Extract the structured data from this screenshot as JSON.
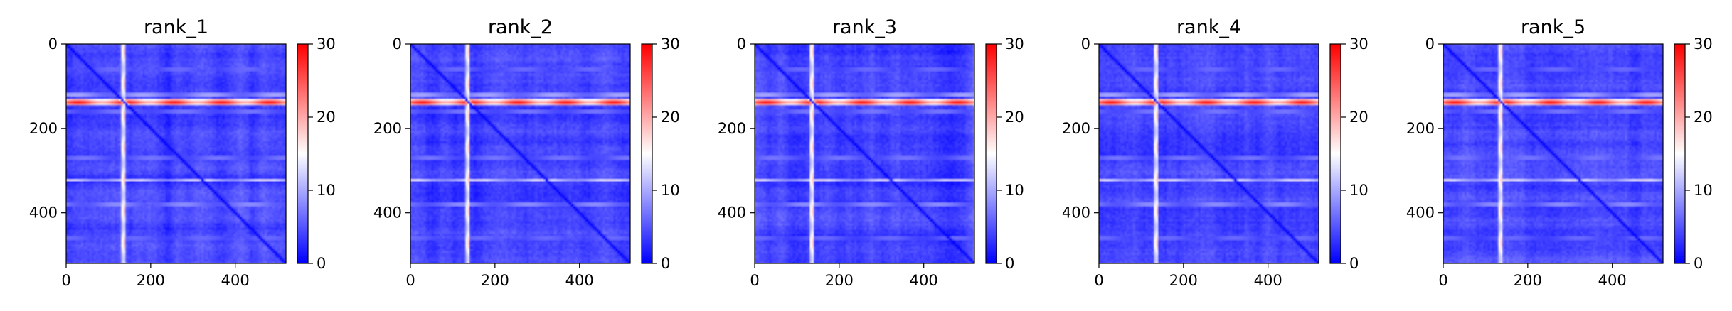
{
  "chart_data": [
    {
      "type": "heatmap",
      "title": "rank_1",
      "xlabel": "",
      "ylabel": "",
      "size": 520,
      "xlim": [
        0,
        520
      ],
      "ylim": [
        520,
        0
      ],
      "x_ticks": [
        0,
        200,
        400
      ],
      "y_ticks": [
        0,
        200,
        400
      ],
      "colorbar": {
        "vmin": 0,
        "vmax": 30,
        "ticks": [
          0,
          10,
          20,
          30
        ],
        "colormap": "bwr"
      },
      "features": {
        "background_value": 4,
        "diagonal_value": 0,
        "column_bands": [
          {
            "pos": 136,
            "value": 20
          }
        ],
        "row_bands": [
          {
            "pos": 138,
            "value": 30
          },
          {
            "pos": 120,
            "value": 14
          },
          {
            "pos": 322,
            "value": 17
          },
          {
            "pos": 380,
            "value": 12
          },
          {
            "pos": 160,
            "value": 10
          },
          {
            "pos": 270,
            "value": 10
          },
          {
            "pos": 60,
            "value": 9
          },
          {
            "pos": 460,
            "value": 9
          }
        ]
      }
    },
    {
      "type": "heatmap",
      "title": "rank_2",
      "xlabel": "",
      "ylabel": "",
      "size": 520,
      "xlim": [
        0,
        520
      ],
      "ylim": [
        520,
        0
      ],
      "x_ticks": [
        0,
        200,
        400
      ],
      "y_ticks": [
        0,
        200,
        400
      ],
      "colorbar": {
        "vmin": 0,
        "vmax": 30,
        "ticks": [
          0,
          10,
          20,
          30
        ],
        "colormap": "bwr"
      },
      "features": {
        "background_value": 4,
        "diagonal_value": 0,
        "column_bands": [
          {
            "pos": 136,
            "value": 20
          }
        ],
        "row_bands": [
          {
            "pos": 138,
            "value": 30
          },
          {
            "pos": 120,
            "value": 14
          },
          {
            "pos": 322,
            "value": 17
          },
          {
            "pos": 380,
            "value": 12
          },
          {
            "pos": 160,
            "value": 10
          },
          {
            "pos": 270,
            "value": 10
          },
          {
            "pos": 60,
            "value": 9
          },
          {
            "pos": 460,
            "value": 9
          }
        ]
      }
    },
    {
      "type": "heatmap",
      "title": "rank_3",
      "xlabel": "",
      "ylabel": "",
      "size": 520,
      "xlim": [
        0,
        520
      ],
      "ylim": [
        520,
        0
      ],
      "x_ticks": [
        0,
        200,
        400
      ],
      "y_ticks": [
        0,
        200,
        400
      ],
      "colorbar": {
        "vmin": 0,
        "vmax": 30,
        "ticks": [
          0,
          10,
          20,
          30
        ],
        "colormap": "bwr"
      },
      "features": {
        "background_value": 4,
        "diagonal_value": 0,
        "column_bands": [
          {
            "pos": 136,
            "value": 20
          }
        ],
        "row_bands": [
          {
            "pos": 138,
            "value": 30
          },
          {
            "pos": 120,
            "value": 14
          },
          {
            "pos": 322,
            "value": 17
          },
          {
            "pos": 380,
            "value": 12
          },
          {
            "pos": 160,
            "value": 10
          },
          {
            "pos": 270,
            "value": 10
          },
          {
            "pos": 60,
            "value": 9
          },
          {
            "pos": 460,
            "value": 9
          }
        ]
      }
    },
    {
      "type": "heatmap",
      "title": "rank_4",
      "xlabel": "",
      "ylabel": "",
      "size": 520,
      "xlim": [
        0,
        520
      ],
      "ylim": [
        520,
        0
      ],
      "x_ticks": [
        0,
        200,
        400
      ],
      "y_ticks": [
        0,
        200,
        400
      ],
      "colorbar": {
        "vmin": 0,
        "vmax": 30,
        "ticks": [
          0,
          10,
          20,
          30
        ],
        "colormap": "bwr"
      },
      "features": {
        "background_value": 4,
        "diagonal_value": 0,
        "column_bands": [
          {
            "pos": 136,
            "value": 20
          }
        ],
        "row_bands": [
          {
            "pos": 138,
            "value": 30
          },
          {
            "pos": 120,
            "value": 14
          },
          {
            "pos": 322,
            "value": 17
          },
          {
            "pos": 380,
            "value": 12
          },
          {
            "pos": 160,
            "value": 10
          },
          {
            "pos": 270,
            "value": 10
          },
          {
            "pos": 60,
            "value": 9
          },
          {
            "pos": 460,
            "value": 9
          }
        ]
      }
    },
    {
      "type": "heatmap",
      "title": "rank_5",
      "xlabel": "",
      "ylabel": "",
      "size": 520,
      "xlim": [
        0,
        520
      ],
      "ylim": [
        520,
        0
      ],
      "x_ticks": [
        0,
        200,
        400
      ],
      "y_ticks": [
        0,
        200,
        400
      ],
      "colorbar": {
        "vmin": 0,
        "vmax": 30,
        "ticks": [
          0,
          10,
          20,
          30
        ],
        "colormap": "bwr"
      },
      "features": {
        "background_value": 4,
        "diagonal_value": 0,
        "column_bands": [
          {
            "pos": 136,
            "value": 20
          }
        ],
        "row_bands": [
          {
            "pos": 138,
            "value": 30
          },
          {
            "pos": 120,
            "value": 14
          },
          {
            "pos": 322,
            "value": 17
          },
          {
            "pos": 380,
            "value": 12
          },
          {
            "pos": 160,
            "value": 10
          },
          {
            "pos": 270,
            "value": 10
          },
          {
            "pos": 60,
            "value": 9
          },
          {
            "pos": 460,
            "value": 9
          }
        ]
      }
    }
  ]
}
